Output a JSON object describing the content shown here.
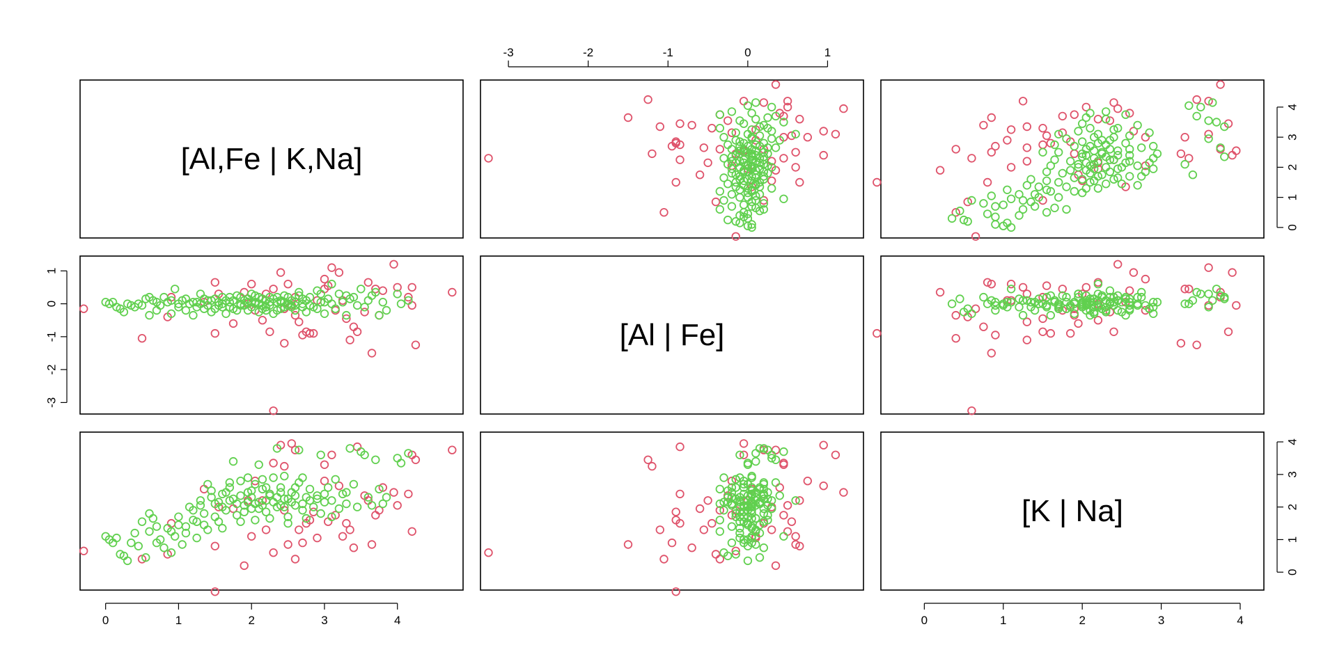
{
  "chart_data": {
    "type": "scatter",
    "layout": "pairs-matrix",
    "variables": [
      "[Al,Fe | K,Na]",
      "[Al | Fe]",
      "[K | Na]"
    ],
    "diagonal_labels": [
      "[Al,Fe | K,Na]",
      "[Al | Fe]",
      "[K | Na]"
    ],
    "axes": {
      "v1": {
        "range": [
          -0.35,
          4.9
        ],
        "ticks": [
          0,
          1,
          2,
          3,
          4
        ],
        "tick_labels": [
          "0",
          "1",
          "2",
          "3",
          "4"
        ]
      },
      "v2": {
        "range": [
          -3.35,
          1.45
        ],
        "ticks": [
          -3,
          -2,
          -1,
          0,
          1
        ],
        "tick_labels": [
          "-3",
          "-2",
          "-1",
          "0",
          "1"
        ]
      },
      "v3": {
        "range": [
          -0.55,
          4.3
        ],
        "ticks": [
          0,
          1,
          2,
          3,
          4
        ],
        "tick_labels": [
          "0",
          "1",
          "2",
          "3",
          "4"
        ]
      }
    },
    "grid": false,
    "legend": "none",
    "series": [
      {
        "color": "#DF536B",
        "points": [
          [
            -0.3,
            -0.15,
            0.65
          ],
          [
            0.5,
            -1.05,
            0.4
          ],
          [
            0.9,
            0.2,
            1.5
          ],
          [
            1.35,
            0.05,
            2.55
          ],
          [
            1.5,
            0.65,
            0.8
          ],
          [
            1.5,
            -0.9,
            -0.6
          ],
          [
            1.55,
            0.3,
            2.0
          ],
          [
            1.9,
            0.35,
            0.2
          ],
          [
            1.95,
            0.0,
            2.2
          ],
          [
            2.0,
            0.6,
            1.1
          ],
          [
            2.05,
            -0.2,
            2.8
          ],
          [
            2.2,
            0.3,
            1.3
          ],
          [
            2.25,
            -0.85,
            2.4
          ],
          [
            2.3,
            -3.25,
            0.6
          ],
          [
            2.3,
            0.45,
            3.35
          ],
          [
            2.4,
            0.95,
            3.9
          ],
          [
            2.45,
            -1.2,
            3.25
          ],
          [
            2.45,
            -0.15,
            1.9
          ],
          [
            2.5,
            0.6,
            0.85
          ],
          [
            2.55,
            -0.05,
            3.95
          ],
          [
            2.6,
            -0.35,
            0.4
          ],
          [
            2.6,
            0.2,
            3.75
          ],
          [
            2.65,
            -0.55,
            1.3
          ],
          [
            2.7,
            -0.95,
            0.9
          ],
          [
            2.75,
            -0.85,
            1.5
          ],
          [
            2.8,
            -0.9,
            1.6
          ],
          [
            2.85,
            -0.9,
            1.85
          ],
          [
            2.9,
            0.1,
            1.05
          ],
          [
            3.0,
            0.75,
            2.8
          ],
          [
            3.05,
            0.55,
            1.55
          ],
          [
            3.1,
            1.1,
            3.6
          ],
          [
            3.15,
            -0.2,
            1.75
          ],
          [
            3.2,
            0.95,
            2.65
          ],
          [
            3.25,
            0.1,
            1.1
          ],
          [
            3.3,
            -0.45,
            1.5
          ],
          [
            3.35,
            -1.1,
            1.3
          ],
          [
            3.4,
            -0.7,
            0.75
          ],
          [
            3.45,
            -0.85,
            3.85
          ],
          [
            3.6,
            0.65,
            2.2
          ],
          [
            3.65,
            -1.5,
            0.85
          ],
          [
            3.7,
            0.45,
            1.75
          ],
          [
            3.8,
            0.4,
            2.6
          ],
          [
            3.95,
            1.2,
            2.45
          ],
          [
            4.0,
            0.5,
            2.05
          ],
          [
            4.15,
            0.2,
            2.4
          ],
          [
            4.2,
            0.5,
            1.25
          ],
          [
            4.2,
            -0.05,
            3.6
          ],
          [
            4.25,
            -1.25,
            3.45
          ],
          [
            4.75,
            0.35,
            3.75
          ],
          [
            0.85,
            -0.4,
            0.55
          ],
          [
            1.75,
            -0.6,
            1.95
          ],
          [
            3.55,
            -0.25,
            2.35
          ],
          [
            2.15,
            -0.5,
            2.2
          ],
          [
            3.0,
            0.45,
            3.3
          ],
          [
            3.75,
            -0.35,
            1.9
          ]
        ]
      },
      {
        "color": "#61D04F",
        "points": [
          [
            0.0,
            0.05,
            1.1
          ],
          [
            0.05,
            0.0,
            1.0
          ],
          [
            0.1,
            0.05,
            0.9
          ],
          [
            0.15,
            -0.1,
            1.05
          ],
          [
            0.2,
            -0.15,
            0.55
          ],
          [
            0.25,
            -0.25,
            0.5
          ],
          [
            0.3,
            0.0,
            0.35
          ],
          [
            0.35,
            -0.05,
            0.9
          ],
          [
            0.4,
            -0.1,
            1.2
          ],
          [
            0.45,
            0.0,
            0.8
          ],
          [
            0.55,
            0.15,
            0.45
          ],
          [
            0.6,
            0.2,
            1.8
          ],
          [
            0.6,
            -0.35,
            1.25
          ],
          [
            0.65,
            0.1,
            1.65
          ],
          [
            0.7,
            -0.2,
            0.9
          ],
          [
            0.75,
            -0.05,
            1.0
          ],
          [
            0.8,
            0.2,
            0.75
          ],
          [
            0.85,
            0.05,
            1.35
          ],
          [
            0.9,
            -0.3,
            0.6
          ],
          [
            0.95,
            0.45,
            1.1
          ],
          [
            1.0,
            -0.1,
            1.7
          ],
          [
            1.05,
            0.1,
            0.85
          ],
          [
            1.1,
            -0.2,
            1.4
          ],
          [
            1.15,
            0.0,
            2.0
          ],
          [
            1.2,
            -0.35,
            1.6
          ],
          [
            1.25,
            0.05,
            1.05
          ],
          [
            1.3,
            0.3,
            2.2
          ],
          [
            1.35,
            -0.15,
            1.8
          ],
          [
            1.4,
            0.1,
            1.3
          ],
          [
            1.45,
            -0.25,
            2.5
          ],
          [
            1.5,
            0.15,
            2.1
          ],
          [
            1.55,
            -0.05,
            1.55
          ],
          [
            1.6,
            0.2,
            2.4
          ],
          [
            1.65,
            -0.3,
            1.9
          ],
          [
            1.7,
            0.05,
            2.6
          ],
          [
            1.75,
            -0.15,
            2.25
          ],
          [
            1.8,
            0.25,
            1.75
          ],
          [
            1.85,
            -0.05,
            2.8
          ],
          [
            1.9,
            0.1,
            2.05
          ],
          [
            1.95,
            -0.2,
            2.45
          ],
          [
            2.0,
            0.3,
            1.95
          ],
          [
            2.05,
            0.0,
            2.7
          ],
          [
            2.1,
            -0.25,
            2.15
          ],
          [
            2.15,
            0.15,
            2.55
          ],
          [
            2.2,
            -0.1,
            1.85
          ],
          [
            2.25,
            0.2,
            2.35
          ],
          [
            2.3,
            -0.3,
            2.9
          ],
          [
            2.35,
            0.05,
            2.0
          ],
          [
            2.4,
            -0.15,
            2.6
          ],
          [
            2.45,
            0.25,
            2.25
          ],
          [
            2.5,
            -0.05,
            1.7
          ],
          [
            2.55,
            0.1,
            2.45
          ],
          [
            2.6,
            -0.2,
            2.05
          ],
          [
            2.65,
            0.35,
            2.75
          ],
          [
            2.7,
            0.0,
            1.9
          ],
          [
            2.75,
            -0.25,
            2.3
          ],
          [
            2.8,
            0.2,
            2.55
          ],
          [
            2.85,
            -0.1,
            2.0
          ],
          [
            2.9,
            0.4,
            2.35
          ],
          [
            2.95,
            0.05,
            1.8
          ],
          [
            3.0,
            -0.3,
            2.15
          ],
          [
            3.05,
            0.15,
            2.6
          ],
          [
            3.1,
            0.6,
            2.2
          ],
          [
            3.15,
            -0.15,
            2.85
          ],
          [
            3.2,
            0.3,
            1.95
          ],
          [
            3.25,
            0.05,
            2.4
          ],
          [
            3.3,
            -0.35,
            2.1
          ],
          [
            3.4,
            0.2,
            2.7
          ],
          [
            3.5,
            0.45,
            3.7
          ],
          [
            3.55,
            -0.1,
            3.6
          ],
          [
            3.6,
            0.1,
            2.3
          ],
          [
            3.7,
            0.35,
            3.45
          ],
          [
            3.75,
            -0.35,
            2.55
          ],
          [
            3.8,
            0.05,
            2.1
          ],
          [
            4.0,
            0.3,
            3.5
          ],
          [
            4.05,
            0.0,
            3.35
          ],
          [
            4.15,
            0.1,
            3.65
          ],
          [
            1.75,
            0.1,
            3.4
          ],
          [
            2.1,
            0.0,
            3.3
          ],
          [
            2.35,
            0.2,
            3.8
          ],
          [
            2.65,
            0.25,
            3.75
          ],
          [
            2.95,
            0.3,
            3.6
          ],
          [
            3.35,
            0.15,
            3.8
          ],
          [
            1.3,
            0.0,
            2.05
          ],
          [
            1.45,
            0.1,
            2.3
          ],
          [
            1.6,
            0.0,
            2.0
          ],
          [
            1.7,
            -0.1,
            2.2
          ],
          [
            1.85,
            0.0,
            2.35
          ],
          [
            1.9,
            -0.05,
            1.85
          ],
          [
            1.95,
            0.15,
            2.15
          ],
          [
            2.0,
            -0.1,
            2.3
          ],
          [
            2.05,
            0.05,
            2.1
          ],
          [
            2.1,
            0.2,
            1.95
          ],
          [
            2.15,
            -0.05,
            2.05
          ],
          [
            2.2,
            0.1,
            2.2
          ],
          [
            2.25,
            -0.05,
            2.4
          ],
          [
            2.3,
            0.15,
            2.15
          ],
          [
            2.35,
            -0.2,
            2.3
          ],
          [
            2.4,
            0.05,
            2.05
          ],
          [
            2.45,
            -0.1,
            2.0
          ],
          [
            2.5,
            0.2,
            2.25
          ],
          [
            2.55,
            -0.1,
            2.15
          ],
          [
            2.6,
            0.05,
            2.35
          ],
          [
            2.7,
            0.15,
            2.1
          ],
          [
            2.8,
            -0.05,
            2.2
          ],
          [
            2.9,
            -0.15,
            2.25
          ],
          [
            3.0,
            0.05,
            2.4
          ],
          [
            1.55,
            0.05,
            2.15
          ],
          [
            1.65,
            0.1,
            2.45
          ],
          [
            1.8,
            -0.2,
            2.1
          ],
          [
            2.0,
            0.05,
            2.5
          ],
          [
            2.2,
            -0.2,
            2.6
          ],
          [
            2.4,
            0.1,
            2.45
          ],
          [
            2.6,
            -0.05,
            2.6
          ],
          [
            1.2,
            0.05,
            1.9
          ],
          [
            1.25,
            -0.1,
            1.55
          ],
          [
            1.0,
            0.0,
            1.45
          ],
          [
            1.1,
            0.15,
            1.2
          ],
          [
            0.9,
            0.1,
            1.25
          ],
          [
            1.35,
            0.15,
            1.45
          ],
          [
            1.5,
            -0.15,
            1.7
          ],
          [
            1.6,
            -0.1,
            1.35
          ],
          [
            1.85,
            0.2,
            1.55
          ],
          [
            2.05,
            0.25,
            1.6
          ],
          [
            2.25,
            0.05,
            1.65
          ],
          [
            2.5,
            0.0,
            1.5
          ],
          [
            2.75,
            0.1,
            1.65
          ],
          [
            3.1,
            0.0,
            1.7
          ],
          [
            3.3,
            0.25,
            2.45
          ],
          [
            3.45,
            -0.05,
            2.0
          ],
          [
            1.95,
            0.05,
            2.9
          ],
          [
            2.15,
            -0.15,
            2.85
          ],
          [
            2.45,
            0.05,
            2.95
          ],
          [
            2.7,
            -0.1,
            2.9
          ],
          [
            1.4,
            -0.05,
            2.7
          ],
          [
            1.7,
            0.2,
            2.75
          ],
          [
            3.65,
            0.25,
            2.05
          ],
          [
            3.85,
            -0.2,
            2.3
          ],
          [
            0.7,
            0.05,
            1.4
          ],
          [
            0.5,
            -0.05,
            1.55
          ]
        ]
      }
    ]
  }
}
